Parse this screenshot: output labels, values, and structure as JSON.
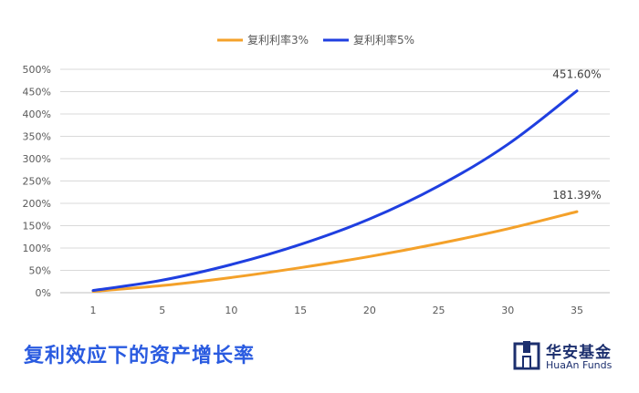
{
  "chart_data": {
    "type": "line",
    "x": [
      1,
      5,
      10,
      15,
      20,
      25,
      30,
      35
    ],
    "ylim": [
      0,
      500
    ],
    "yticks": [
      "0%",
      "50%",
      "100%",
      "150%",
      "200%",
      "250%",
      "300%",
      "350%",
      "400%",
      "450%",
      "500%"
    ],
    "grid": true,
    "legend_position": "top-center",
    "series": [
      {
        "name": "复利利率3%",
        "color": "#f4a12a",
        "values": [
          3,
          16,
          34,
          56,
          81,
          110,
          143,
          181.39
        ],
        "end_label": "181.39%"
      },
      {
        "name": "复利利率5%",
        "color": "#1f3fe0",
        "values": [
          5,
          28,
          63,
          108,
          165,
          239,
          332,
          451.6
        ],
        "end_label": "451.60%"
      }
    ]
  },
  "caption": "复利效应下的资产增长率",
  "brand": {
    "cn": "华安基金",
    "en": "HuaAn Funds",
    "color": "#1c2f6e"
  }
}
